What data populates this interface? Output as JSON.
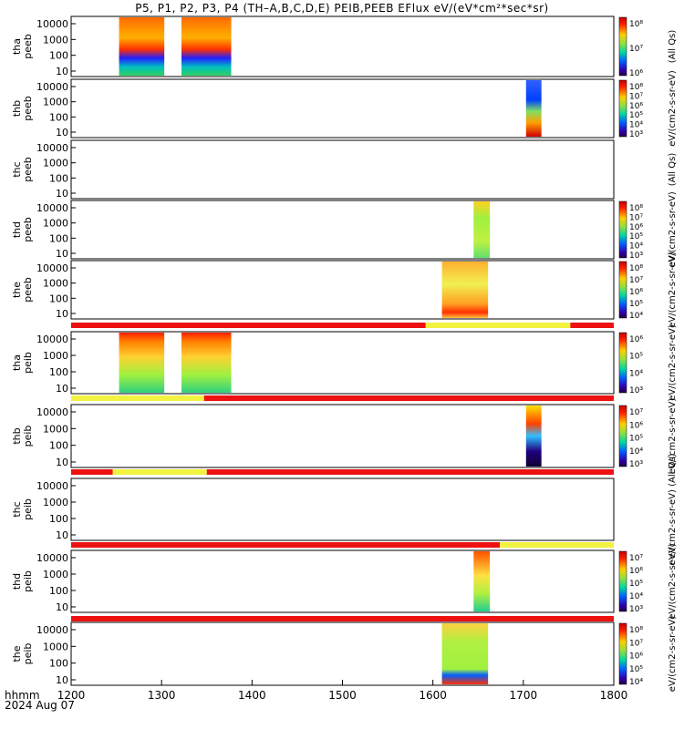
{
  "title": "P5, P1, P2, P3, P4 (TH–A,B,C,D,E) PEIB,PEEB EFlux eV/(eV*cm²*sec*sr)",
  "chart_data": {
    "type": "heatmap",
    "x_axis": {
      "label": "hhmm",
      "date": "2024 Aug 07",
      "range": [
        1200,
        1800
      ],
      "ticks": [
        "1200",
        "1300",
        "1400",
        "1500",
        "1600",
        "1700",
        "1800"
      ]
    },
    "panels": [
      {
        "probe": "tha",
        "instrument": "peeb",
        "label": [
          "tha",
          "peeb"
        ],
        "yticks": [
          "10000",
          "1000",
          "100",
          "10"
        ],
        "cbar_label": "(All Qs)",
        "cbar_ticks": [
          "10⁸",
          "10⁷",
          "10⁶"
        ],
        "active_ranges": [
          [
            1253,
            1303
          ],
          [
            1322,
            1377
          ]
        ]
      },
      {
        "probe": "thb",
        "instrument": "peeb",
        "label": [
          "thb",
          "peeb"
        ],
        "yticks": [
          "10000",
          "1000",
          "100",
          "10"
        ],
        "cbar_label": "eV/(cm2-s-sr-eV)",
        "cbar_ticks": [
          "10⁸",
          "10⁷",
          "10⁶",
          "10⁵",
          "10⁴",
          "10³"
        ],
        "active_ranges": [
          [
            1703,
            1720
          ]
        ]
      },
      {
        "probe": "thc",
        "instrument": "peeb",
        "label": [
          "thc",
          "peeb"
        ],
        "yticks": [
          "10000",
          "1000",
          "100",
          "10"
        ],
        "cbar_label": "(All Qs)",
        "cbar_ticks": [],
        "active_ranges": []
      },
      {
        "probe": "thd",
        "instrument": "peeb",
        "label": [
          "thd",
          "peeb"
        ],
        "yticks": [
          "10000",
          "1000",
          "100",
          "10"
        ],
        "cbar_label": "eV/(cm2-s-sr-eV)",
        "cbar_ticks": [
          "10⁸",
          "10⁷",
          "10⁶",
          "10⁵",
          "10⁴",
          "10³"
        ],
        "active_ranges": [
          [
            1645,
            1663
          ]
        ]
      },
      {
        "probe": "the",
        "instrument": "peeb",
        "label": [
          "the",
          "peeb"
        ],
        "yticks": [
          "10000",
          "1000",
          "100",
          "10"
        ],
        "cbar_label": "eV/(cm2-s-sr-eV)",
        "cbar_ticks": [
          "10⁸",
          "10⁷",
          "10⁶",
          "10⁵",
          "10⁴"
        ],
        "active_ranges": [
          [
            1610,
            1661
          ]
        ]
      },
      {
        "probe": "tha",
        "instrument": "peib",
        "label": [
          "tha",
          "peib"
        ],
        "yticks": [
          "10000",
          "1000",
          "100",
          "10"
        ],
        "cbar_label": "eV/(cm2-s-sr-eV)",
        "cbar_ticks": [
          "10⁶",
          "10⁵",
          "10⁴",
          "10³"
        ],
        "active_ranges": [
          [
            1253,
            1303
          ],
          [
            1322,
            1377
          ]
        ]
      },
      {
        "probe": "thb",
        "instrument": "peib",
        "label": [
          "thb",
          "peib"
        ],
        "yticks": [
          "10000",
          "1000",
          "100",
          "10"
        ],
        "cbar_label": "eV/(cm2-s-sr-eV)",
        "cbar_ticks": [
          "10⁷",
          "10⁶",
          "10⁵",
          "10⁴",
          "10³"
        ],
        "active_ranges": [
          [
            1703,
            1720
          ]
        ]
      },
      {
        "probe": "thc",
        "instrument": "peib",
        "label": [
          "thc",
          "peib"
        ],
        "yticks": [
          "10000",
          "1000",
          "100",
          "10"
        ],
        "cbar_label": "eV/(cm2-s-sr-eV) (All Qs)",
        "cbar_ticks": [],
        "active_ranges": []
      },
      {
        "probe": "thd",
        "instrument": "peib",
        "label": [
          "thd",
          "peib"
        ],
        "yticks": [
          "10000",
          "1000",
          "100",
          "10"
        ],
        "cbar_label": "eV/(cm2-s-sr-eV)",
        "cbar_ticks": [
          "10⁷",
          "10⁶",
          "10⁵",
          "10⁴",
          "10³"
        ],
        "active_ranges": [
          [
            1645,
            1663
          ]
        ]
      },
      {
        "probe": "the",
        "instrument": "peib",
        "label": [
          "the",
          "peib"
        ],
        "yticks": [
          "10000",
          "1000",
          "100",
          "10"
        ],
        "cbar_label": "eV/(cm2-s-sr-eV)",
        "cbar_ticks": [
          "10⁸",
          "10⁷",
          "10⁶",
          "10⁵",
          "10⁴"
        ],
        "active_ranges": [
          [
            1610,
            1661
          ]
        ]
      }
    ],
    "mode_bars": [
      {
        "after_panel": 4,
        "segments": [
          [
            "red",
            1200,
            1592
          ],
          [
            "yellow",
            1592,
            1752
          ],
          [
            "red",
            1752,
            1800
          ]
        ]
      },
      {
        "after_panel": 5,
        "segments": [
          [
            "yellow",
            1200,
            1347
          ],
          [
            "red",
            1347,
            1800
          ]
        ]
      },
      {
        "after_panel": 6,
        "segments": [
          [
            "red",
            1200,
            1246
          ],
          [
            "yellow",
            1246,
            1350
          ],
          [
            "red",
            1350,
            1800
          ]
        ]
      },
      {
        "after_panel": 7,
        "segments": [
          [
            "red",
            1200,
            1674
          ],
          [
            "yellow",
            1674,
            1800
          ]
        ]
      },
      {
        "after_panel": 8,
        "segments": [
          [
            "red",
            1200,
            1800
          ]
        ]
      }
    ],
    "colors": {
      "mode_red": "#ee1111",
      "mode_yellow": "#f2f240"
    }
  }
}
